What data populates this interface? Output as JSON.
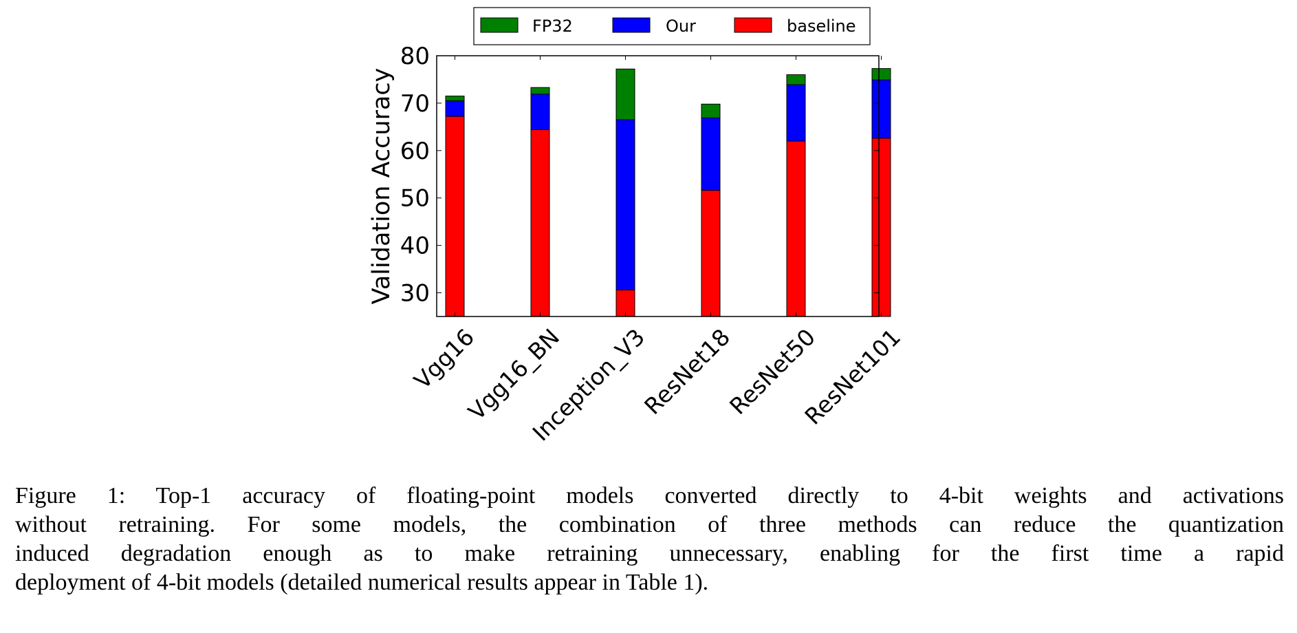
{
  "chart_data": {
    "type": "bar",
    "stacked_overlay": true,
    "categories": [
      "Vgg16",
      "Vgg16_BN",
      "Inception_V3",
      "ResNet18",
      "ResNet50",
      "ResNet101"
    ],
    "series": [
      {
        "name": "FP32",
        "color": "#008000",
        "values": [
          71.5,
          73.3,
          77.2,
          69.8,
          76.0,
          77.3
        ]
      },
      {
        "name": "Our",
        "color": "#0000ff",
        "values": [
          70.5,
          71.9,
          66.5,
          66.9,
          73.9,
          74.9
        ]
      },
      {
        "name": "baseline",
        "color": "#ff0000",
        "values": [
          67.2,
          64.4,
          30.6,
          51.6,
          62.0,
          62.6
        ]
      }
    ],
    "ylabel": "Validation Accuracy",
    "xlabel": "",
    "ylim": [
      25,
      80
    ],
    "yticks": [
      30,
      40,
      50,
      60,
      70,
      80
    ],
    "grid": false,
    "legend_placement": "top-center, above plot"
  },
  "caption": {
    "lines": [
      "Figure 1: Top-1 accuracy of floating-point models converted directly to 4-bit weights and activations",
      "without retraining. For some models, the combination of three methods can reduce the quantization",
      "induced degradation enough as to make retraining unnecessary, enabling for the first time a rapid",
      "deployment of 4-bit models (detailed numerical results appear in Table 1)."
    ]
  }
}
